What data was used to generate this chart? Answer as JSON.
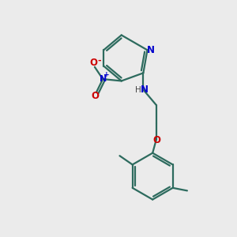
{
  "background_color": "#ebebeb",
  "bond_color": "#2d6b5e",
  "N_color": "#0000cc",
  "O_color": "#cc0000",
  "lw": 1.6,
  "figsize": [
    3.0,
    3.0
  ],
  "dpi": 100,
  "xlim": [
    0,
    10
  ],
  "ylim": [
    0,
    10
  ]
}
